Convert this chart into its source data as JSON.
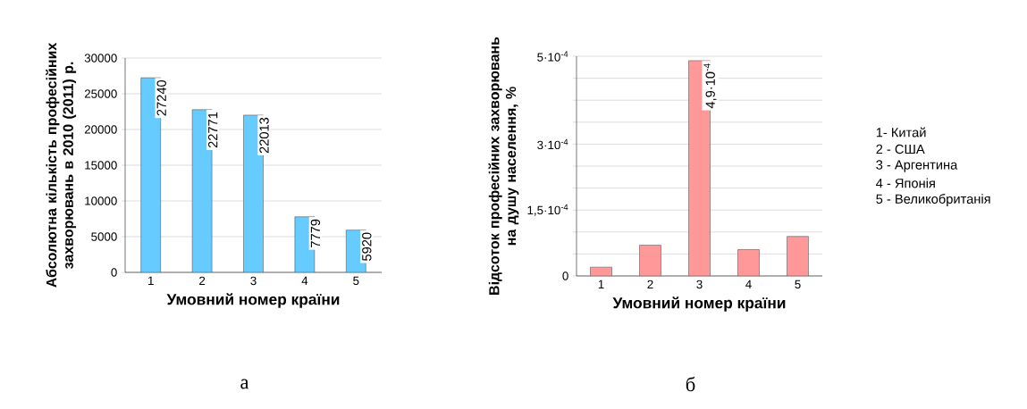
{
  "chart_data": [
    {
      "type": "bar",
      "categories": [
        "1",
        "2",
        "3",
        "4",
        "5"
      ],
      "values": [
        27240,
        22771,
        22013,
        7779,
        5920
      ],
      "color": "#66ccff",
      "xlabel": "Умовний номер країни",
      "ylabel": "Абсолютна кількість професійних захворювань  в 2010 (2011) р.",
      "ylim": [
        0,
        30000
      ],
      "yticks": [
        0,
        5000,
        10000,
        15000,
        20000,
        25000,
        30000
      ],
      "grid": "y",
      "data_labels": true,
      "annotations": [
        "а"
      ]
    },
    {
      "type": "bar",
      "categories": [
        "1",
        "2",
        "3",
        "4",
        "5"
      ],
      "values": [
        2e-05,
        7e-05,
        0.00049,
        6e-05,
        9e-05
      ],
      "color": "#ff9999",
      "xlabel": "Умовний номер країни",
      "ylabel": "Відсоток професійних захворювань на душу населення, %",
      "ylim": [
        0,
        0.0005
      ],
      "yticks": [
        0,
        {
          "value": 5e-05,
          "label": null
        },
        {
          "value": 0.0001,
          "label": null
        },
        {
          "value": 0.00015,
          "label": "1,5·10$^{-4}$"
        },
        {
          "value": 0.0002,
          "label": null
        },
        {
          "value": 0.00025,
          "label": null
        },
        {
          "value": 0.0003,
          "label": "3·10$^{-4}$"
        },
        {
          "value": 0.00035,
          "label": null
        },
        {
          "value": 0.0004,
          "label": null
        },
        {
          "value": 0.00045,
          "label": null
        },
        {
          "value": 0.0005,
          "label": "5·10$^{-4}$"
        }
      ],
      "grid": "y",
      "annotations": [
        "б",
        {
          "text": "4,9·10$^{-4}$",
          "x": "3",
          "y": 0.00049
        },
        "1-  Китай",
        "2 - США",
        "3 - Аргентина",
        "4 - Японія",
        "5 - Великобританія"
      ]
    }
  ]
}
